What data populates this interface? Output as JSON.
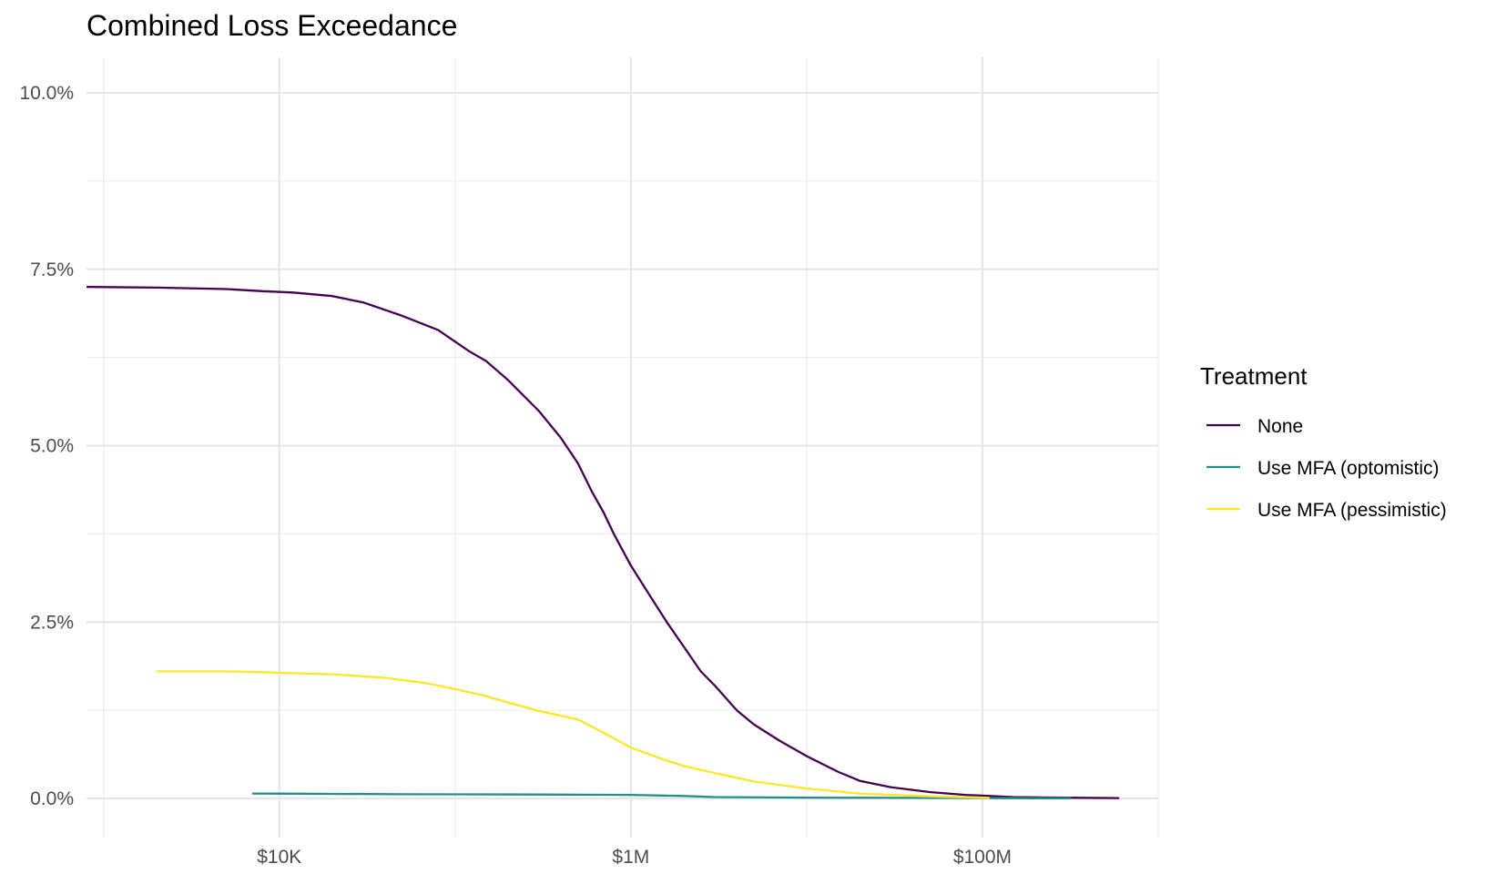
{
  "chart_data": {
    "type": "line",
    "title": "Combined Loss Exceedance",
    "xlabel": "",
    "ylabel": "",
    "x_scale": "log10",
    "xlim": [
      800,
      1000000000
    ],
    "ylim": [
      0,
      0.1
    ],
    "grid": true,
    "legend_position": "right",
    "x_ticks": [
      {
        "value": 10000,
        "label": "$10K"
      },
      {
        "value": 1000000,
        "label": "$1M"
      },
      {
        "value": 100000000,
        "label": "$100M"
      }
    ],
    "x_minor_ticks": [
      1000,
      100000,
      10000000,
      1000000000
    ],
    "y_ticks": [
      {
        "value": 0.0,
        "label": "0.0%"
      },
      {
        "value": 0.025,
        "label": "2.5%"
      },
      {
        "value": 0.05,
        "label": "5.0%"
      },
      {
        "value": 0.075,
        "label": "7.5%"
      },
      {
        "value": 0.1,
        "label": "10.0%"
      }
    ],
    "y_minor_ticks": [
      0.0125,
      0.0375,
      0.0625,
      0.0875
    ],
    "legend_title": "Treatment",
    "series": [
      {
        "name": "None",
        "color": "#440154",
        "points": [
          [
            800,
            0.0725
          ],
          [
            2000,
            0.0724
          ],
          [
            5000,
            0.0722
          ],
          [
            8000,
            0.0719
          ],
          [
            12000,
            0.0717
          ],
          [
            20000,
            0.0712
          ],
          [
            30000,
            0.0703
          ],
          [
            50000,
            0.0684
          ],
          [
            80000,
            0.0664
          ],
          [
            120000,
            0.0634
          ],
          [
            150000,
            0.062
          ],
          [
            200000,
            0.0593
          ],
          [
            300000,
            0.0549
          ],
          [
            400000,
            0.0511
          ],
          [
            500000,
            0.0475
          ],
          [
            600000,
            0.0435
          ],
          [
            700000,
            0.0405
          ],
          [
            800000,
            0.0375
          ],
          [
            1000000,
            0.033
          ],
          [
            1300000,
            0.0285
          ],
          [
            1600000,
            0.025
          ],
          [
            2000000,
            0.0215
          ],
          [
            2500000,
            0.018
          ],
          [
            3000000,
            0.016
          ],
          [
            4000000,
            0.0125
          ],
          [
            5000000,
            0.0105
          ],
          [
            7000000,
            0.0082
          ],
          [
            10000000,
            0.006
          ],
          [
            15000000,
            0.0038
          ],
          [
            20000000,
            0.0025
          ],
          [
            30000000,
            0.0016
          ],
          [
            50000000,
            0.0009
          ],
          [
            80000000,
            0.0005
          ],
          [
            100000000,
            0.0004
          ],
          [
            150000000,
            0.0002
          ],
          [
            300000000,
            0.0001
          ],
          [
            600000000,
            5e-05
          ]
        ]
      },
      {
        "name": "Use MFA (optomistic)",
        "color": "#21908C",
        "points": [
          [
            7000,
            0.0007
          ],
          [
            10000,
            0.00068
          ],
          [
            20000,
            0.00065
          ],
          [
            50000,
            0.0006
          ],
          [
            100000,
            0.00058
          ],
          [
            300000,
            0.00055
          ],
          [
            1000000,
            0.0005
          ],
          [
            2000000,
            0.00035
          ],
          [
            3000000,
            0.0002
          ],
          [
            10000000,
            0.00012
          ],
          [
            50000000,
            8e-05
          ],
          [
            200000000,
            3e-05
          ],
          [
            320000000,
            2e-05
          ]
        ]
      },
      {
        "name": "Use MFA (pessimistic)",
        "color": "#FDE725",
        "points": [
          [
            2000,
            0.018
          ],
          [
            5000,
            0.018
          ],
          [
            8000,
            0.0179
          ],
          [
            10000,
            0.0178
          ],
          [
            20000,
            0.0176
          ],
          [
            40000,
            0.0171
          ],
          [
            70000,
            0.0163
          ],
          [
            100000,
            0.0155
          ],
          [
            150000,
            0.0145
          ],
          [
            200000,
            0.0136
          ],
          [
            300000,
            0.0124
          ],
          [
            500000,
            0.0112
          ],
          [
            700000,
            0.0093
          ],
          [
            1000000,
            0.0072
          ],
          [
            1500000,
            0.0056
          ],
          [
            2000000,
            0.0046
          ],
          [
            3000000,
            0.0036
          ],
          [
            5000000,
            0.0024
          ],
          [
            10000000,
            0.0014
          ],
          [
            20000000,
            0.0007
          ],
          [
            50000000,
            0.0003
          ],
          [
            100000000,
            0.0001
          ],
          [
            110000000,
            5e-05
          ]
        ]
      }
    ]
  }
}
